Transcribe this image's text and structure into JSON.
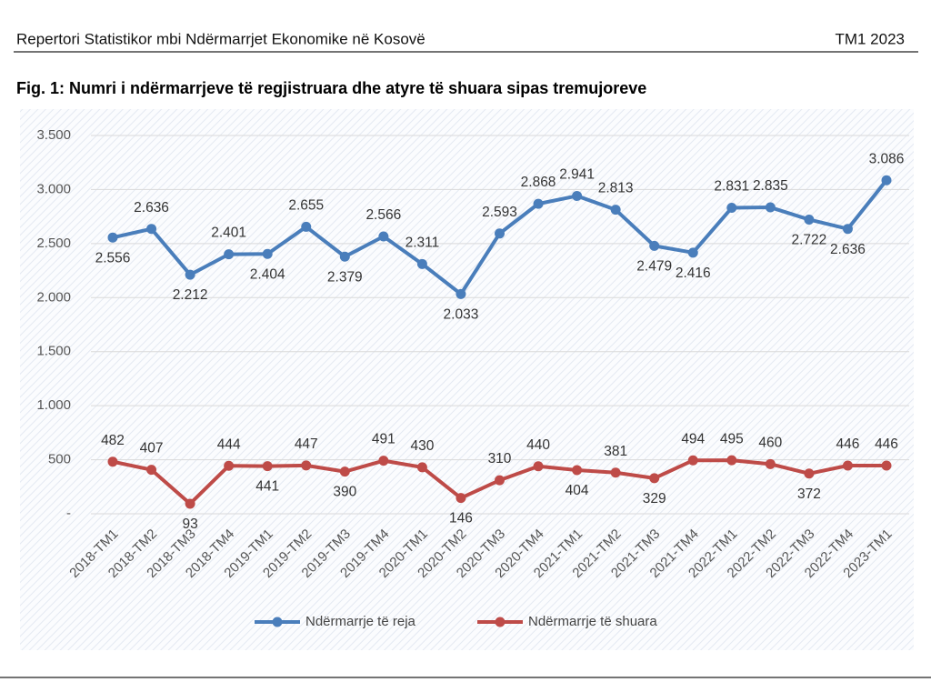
{
  "header": {
    "left": "Repertori Statistikor mbi Ndërmarrjet Ekonomike në Kosovë",
    "right": "TM1 2023"
  },
  "chart_data": {
    "type": "line",
    "title": "Fig. 1: Numri i ndërmarrjeve të regjistruara dhe atyre të shuara sipas tremujoreve",
    "categories": [
      "2018-TM1",
      "2018-TM2",
      "2018-TM3",
      "2018-TM4",
      "2019-TM1",
      "2019-TM2",
      "2019-TM3",
      "2019-TM4",
      "2020-TM1",
      "2020-TM2",
      "2020-TM3",
      "2020-TM4",
      "2021-TM1",
      "2021-TM2",
      "2021-TM3",
      "2021-TM4",
      "2022-TM1",
      "2022-TM2",
      "2022-TM3",
      "2022-TM4",
      "2023-TM1"
    ],
    "series": [
      {
        "name": "Ndërmarrje të reja",
        "color": "#4a7ebb",
        "values": [
          2556,
          2636,
          2212,
          2401,
          2404,
          2655,
          2379,
          2566,
          2311,
          2033,
          2593,
          2868,
          2941,
          2813,
          2479,
          2416,
          2831,
          2835,
          2722,
          2636,
          3086
        ],
        "value_labels": [
          "2.556",
          "2.636",
          "2.212",
          "2.401",
          "2.404",
          "2.655",
          "2.379",
          "2.566",
          "2.311",
          "2.033",
          "2.593",
          "2.868",
          "2.941",
          "2.813",
          "2.479",
          "2.416",
          "2.831",
          "2.835",
          "2.722",
          "2.636",
          "3.086"
        ]
      },
      {
        "name": "Ndërmarrje të shuara",
        "color": "#be4b48",
        "values": [
          482,
          407,
          93,
          444,
          441,
          447,
          390,
          491,
          430,
          146,
          310,
          440,
          404,
          381,
          329,
          494,
          495,
          460,
          372,
          446,
          446
        ]
      }
    ],
    "ylim": [
      0,
      3500
    ],
    "yticks": [
      {
        "value": 0,
        "label": "-"
      },
      500,
      {
        "value": 1000,
        "label": "1.000"
      },
      {
        "value": 1500,
        "label": "1.500"
      },
      {
        "value": 2000,
        "label": "2.000"
      },
      {
        "value": 2500,
        "label": "2.500"
      },
      {
        "value": 3000,
        "label": "3.000"
      },
      {
        "value": 3500,
        "label": "3.500"
      }
    ],
    "grid": true,
    "legend": "bottom"
  }
}
